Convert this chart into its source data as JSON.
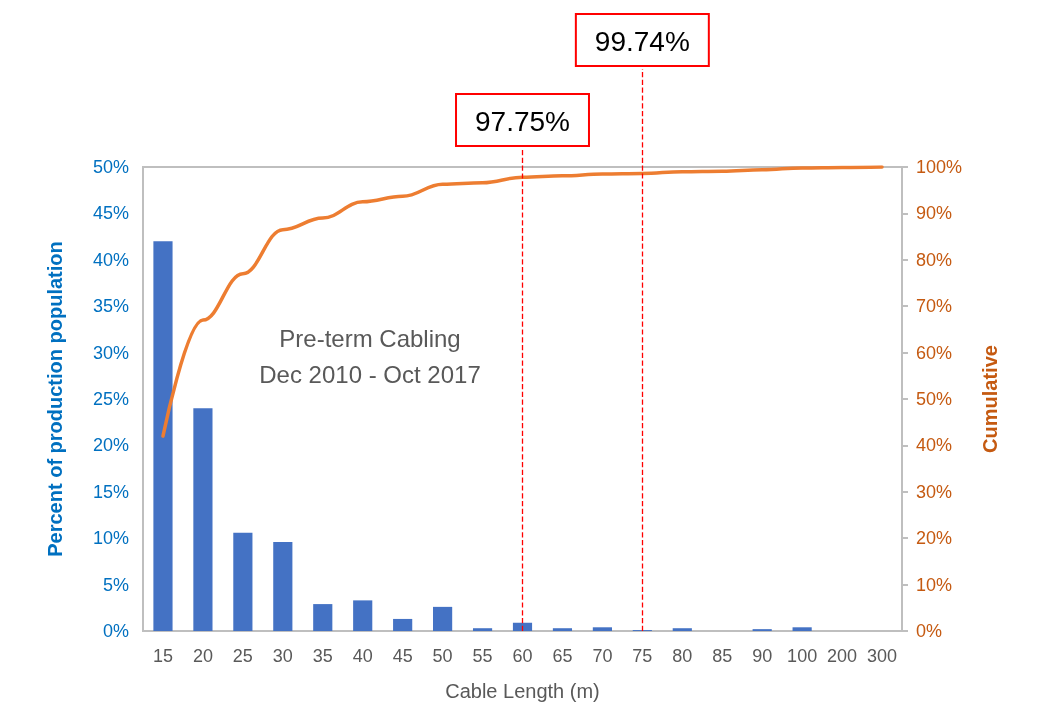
{
  "chart_data": {
    "type": "bar",
    "xlabel": "Cable Length (m)",
    "ylabel": "Percent of production population",
    "y2label": "Cumulative",
    "categories": [
      "15",
      "20",
      "25",
      "30",
      "35",
      "40",
      "45",
      "50",
      "55",
      "60",
      "65",
      "70",
      "75",
      "80",
      "85",
      "90",
      "100",
      "200",
      "300"
    ],
    "series": [
      {
        "color": "#4472c4",
        "values": [
          42.0,
          24.0,
          10.6,
          9.6,
          2.9,
          3.3,
          1.3,
          2.6,
          0.3,
          0.9,
          0.3,
          0.4,
          0.1,
          0.3,
          0,
          0.2,
          0.4,
          0,
          0
        ]
      },
      {
        "type": "line",
        "axis": "y2",
        "color": "#ed7d31",
        "values": [
          42,
          67,
          77,
          86.5,
          89,
          92.5,
          93.7,
          96.3,
          96.6,
          97.8,
          98.1,
          98.5,
          98.6,
          99.0,
          99.1,
          99.4,
          99.8,
          99.9,
          100
        ]
      }
    ],
    "ylim": [
      0,
      50
    ],
    "yticks": [
      {
        "value": 0,
        "label": "0%"
      },
      {
        "value": 5,
        "label": "5%"
      },
      {
        "value": 10,
        "label": "10%"
      },
      {
        "value": 15,
        "label": "15%"
      },
      {
        "value": 20,
        "label": "20%"
      },
      {
        "value": 25,
        "label": "25%"
      },
      {
        "value": 30,
        "label": "30%"
      },
      {
        "value": 35,
        "label": "35%"
      },
      {
        "value": 40,
        "label": "40%"
      },
      {
        "value": 45,
        "label": "45%"
      },
      {
        "value": 50,
        "label": "50%"
      }
    ],
    "y2lim": [
      0,
      100
    ],
    "y2ticks": [
      {
        "value": 0,
        "label": "0%"
      },
      {
        "value": 10,
        "label": "10%"
      },
      {
        "value": 20,
        "label": "20%"
      },
      {
        "value": 30,
        "label": "30%"
      },
      {
        "value": 40,
        "label": "40%"
      },
      {
        "value": 50,
        "label": "50%"
      },
      {
        "value": 60,
        "label": "60%"
      },
      {
        "value": 70,
        "label": "70%"
      },
      {
        "value": 80,
        "label": "80%"
      },
      {
        "value": 90,
        "label": "90%"
      },
      {
        "value": 100,
        "label": "100%"
      }
    ],
    "ref_lines": [
      {
        "axis": "x",
        "value": "60",
        "label": "97.75%",
        "color": "#ff0000",
        "line_style": "dashed"
      },
      {
        "axis": "x",
        "value": "75",
        "label": "99.74%",
        "color": "#ff0000",
        "line_style": "dashed"
      }
    ],
    "annotations": [
      "Pre-term Cabling",
      "Dec 2010 - Oct 2017"
    ],
    "grid": false,
    "marker": "none",
    "line_style": "solid"
  }
}
